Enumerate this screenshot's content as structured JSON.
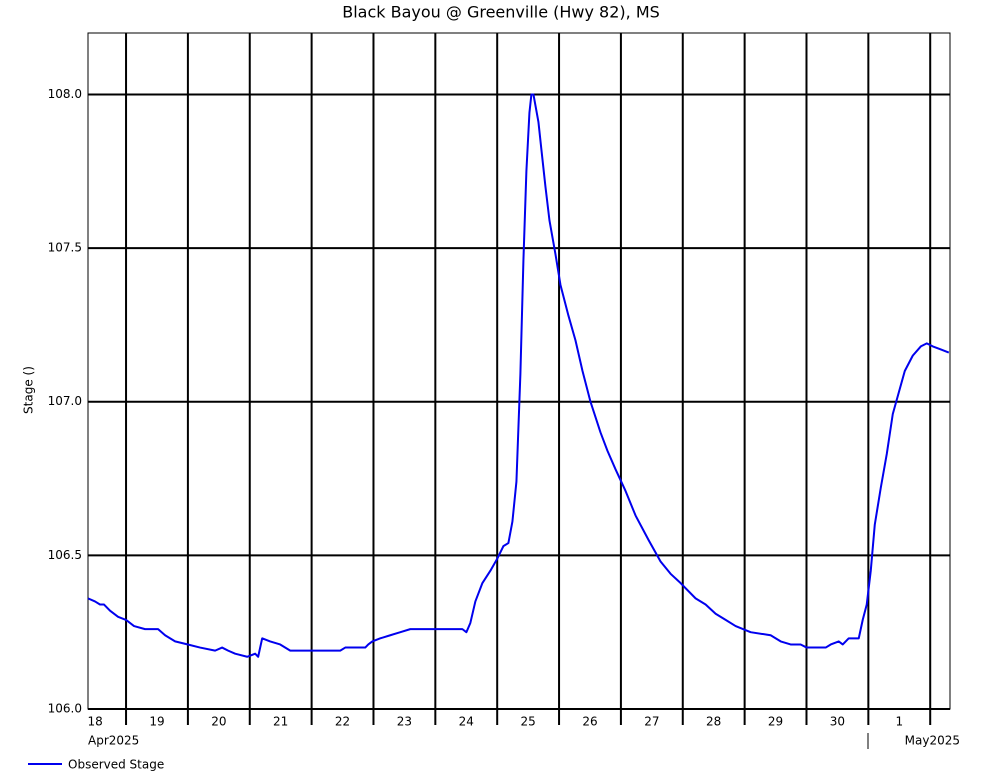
{
  "chart_data": {
    "type": "line",
    "title": "Black Bayou @ Greenville (Hwy 82), MS",
    "y_label": "Stage ()",
    "x_month_labels": [
      "Apr2025",
      "May2025"
    ],
    "x": [
      18.385,
      18.498,
      18.579,
      18.644,
      18.741,
      18.871,
      19,
      19.129,
      19.307,
      19.518,
      19.631,
      19.793,
      20.0,
      20.197,
      20.44,
      20.553,
      20.65,
      20.764,
      20.958,
      21.087,
      21.136,
      21.201,
      21.33,
      21.492,
      21.654,
      21.816,
      22.463,
      22.544,
      22.867,
      22.916,
      22.981,
      23.11,
      23.272,
      23.434,
      23.595,
      24.0,
      24.081,
      24.437,
      24.502,
      24.566,
      24.647,
      24.761,
      24.89,
      25.003,
      25.1,
      25.181,
      25.246,
      25.311,
      25.375,
      25.424,
      25.472,
      25.521,
      25.553,
      25.586,
      25.667,
      25.715,
      25.78,
      25.845,
      25.942,
      26.023,
      26.152,
      26.265,
      26.379,
      26.508,
      26.67,
      26.783,
      26.913,
      27.074,
      27.236,
      27.447,
      27.641,
      27.803,
      27.964,
      28.207,
      28.369,
      28.531,
      28.693,
      28.854,
      29.097,
      29.421,
      29.583,
      29.744,
      29.906,
      30.003,
      30.311,
      30.392,
      30.521,
      30.586,
      30.683,
      30.845,
      30.909,
      30.974,
      31.039,
      31.104,
      31.201,
      31.298,
      31.395,
      31.492,
      31.589,
      31.718,
      31.848,
      31.945,
      32.042,
      32.172,
      32.301
    ],
    "series": [
      {
        "name": "Observed Stage",
        "color": "#0000ee",
        "values": [
          106.36,
          106.35,
          106.34,
          106.34,
          106.32,
          106.3,
          106.29,
          106.27,
          106.26,
          106.26,
          106.24,
          106.22,
          106.21,
          106.2,
          106.19,
          106.2,
          106.19,
          106.18,
          106.17,
          106.18,
          106.17,
          106.23,
          106.22,
          106.21,
          106.19,
          106.19,
          106.19,
          106.2,
          106.2,
          106.21,
          106.22,
          106.23,
          106.24,
          106.25,
          106.26,
          106.26,
          106.26,
          106.26,
          106.25,
          106.28,
          106.35,
          106.41,
          106.45,
          106.49,
          106.53,
          106.54,
          106.61,
          106.74,
          107.09,
          107.46,
          107.75,
          107.94,
          108.0,
          108.0,
          107.91,
          107.82,
          107.7,
          107.59,
          107.48,
          107.38,
          107.28,
          107.2,
          107.1,
          107.0,
          106.9,
          106.84,
          106.78,
          106.71,
          106.63,
          106.55,
          106.48,
          106.44,
          106.41,
          106.36,
          106.34,
          106.31,
          106.29,
          106.27,
          106.25,
          106.24,
          106.22,
          106.21,
          106.21,
          106.2,
          106.2,
          106.21,
          106.22,
          106.21,
          106.23,
          106.23,
          106.29,
          106.34,
          106.45,
          106.6,
          106.72,
          106.83,
          106.96,
          107.03,
          107.1,
          107.15,
          107.18,
          107.19,
          107.18,
          107.17,
          107.16
        ]
      }
    ],
    "xlim": [
      18.385,
      32.32
    ],
    "xticks": [
      18,
      19,
      20,
      21,
      22,
      23,
      24,
      25,
      26,
      27,
      28,
      29,
      30,
      {
        "value": 31,
        "label": "1"
      },
      32
    ],
    "ylim": [
      106.0,
      108.2
    ],
    "yticks": [
      {
        "value": 106,
        "label": "106.0"
      },
      106.5,
      {
        "value": 107,
        "label": "107.0"
      },
      107.5,
      {
        "value": 108,
        "label": "108.0"
      }
    ],
    "grid": true,
    "legend": "bottom-left"
  }
}
